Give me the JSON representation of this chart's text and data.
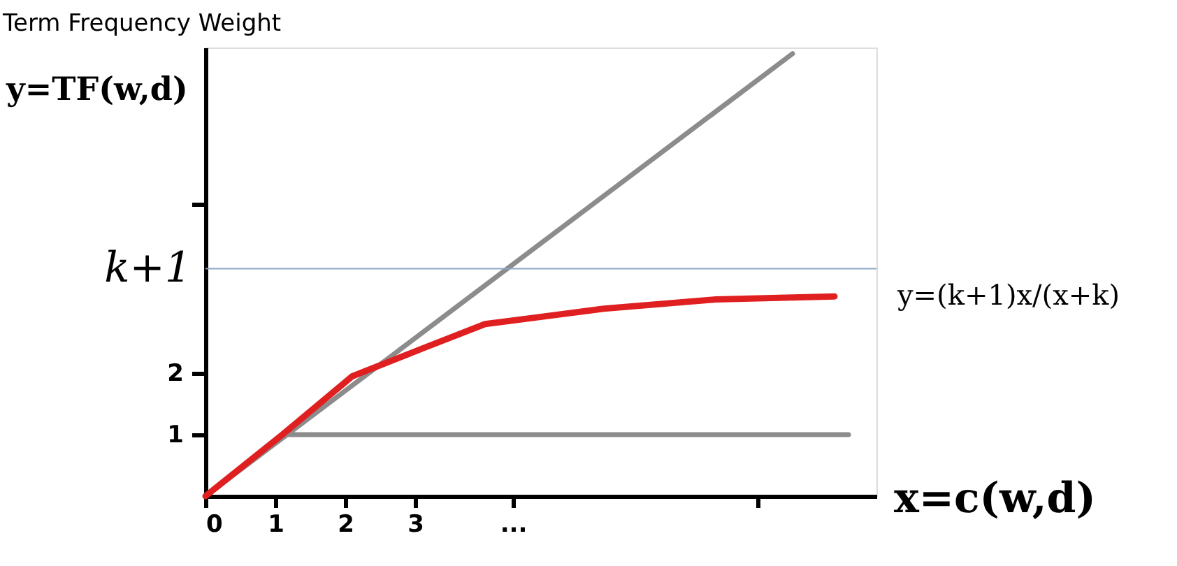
{
  "chart_data": {
    "type": "line",
    "title": "Term Frequency Weight",
    "xlabel": "x=c(w,d)",
    "ylabel": "y=TF(w,d)",
    "series": [
      {
        "color": "#8c8c8c",
        "x": [
          0,
          8.4
        ],
        "values": [
          0,
          7.2
        ]
      },
      {
        "color": "#8c8c8c",
        "x": [
          1.1,
          9.2
        ],
        "values": [
          1,
          1
        ]
      },
      {
        "color": "#e02020",
        "x": [
          0,
          1.1,
          2.1,
          3.1,
          4.0,
          5.7,
          7.3,
          9.0
        ],
        "values": [
          0,
          1,
          1.95,
          2.4,
          2.8,
          3.05,
          3.2,
          3.25
        ]
      }
    ],
    "xlim": [
      0,
      9.6
    ],
    "ylim": [
      0,
      7.3
    ],
    "xticks": [
      0,
      1,
      2,
      3,
      {
        "value": 4.4,
        "label": "..."
      },
      {
        "value": 7.9,
        "label": null
      }
    ],
    "yticks": [
      1,
      2,
      {
        "value": 4.75,
        "label": null
      }
    ],
    "ref_lines": [
      {
        "axis": "y",
        "value": 3.7,
        "label": "k+1",
        "color": "#8ea6c6"
      }
    ],
    "annotations": [
      "y=(k+1)x/(x+k)"
    ],
    "grid": false,
    "marker": "none",
    "line_style": "solid"
  }
}
